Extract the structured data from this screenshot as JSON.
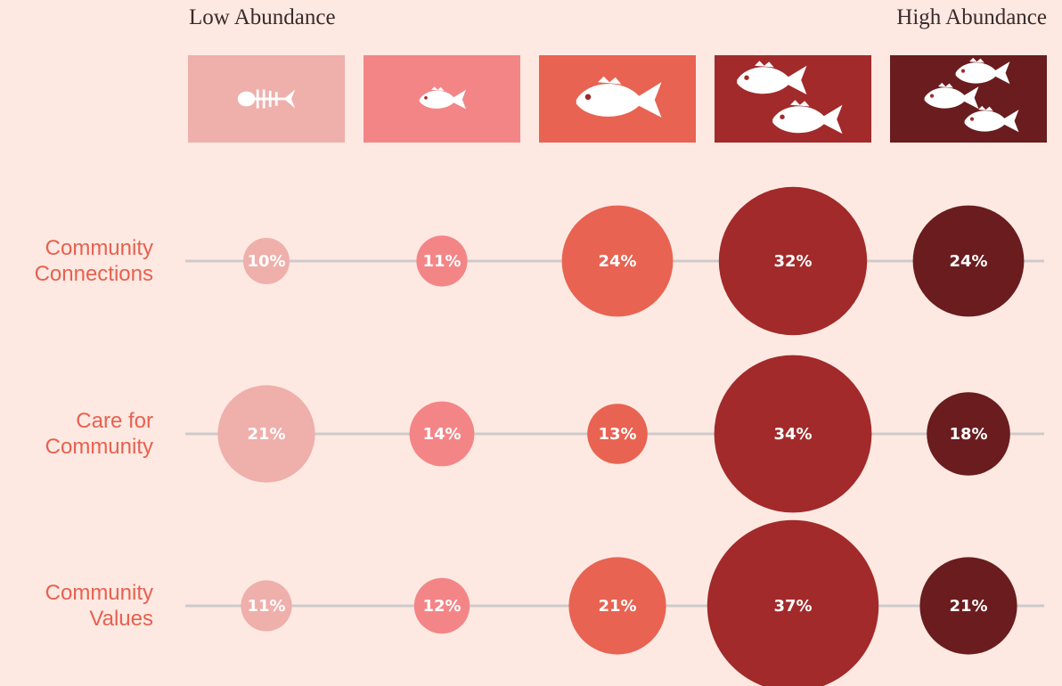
{
  "chart_data": {
    "type": "bubble",
    "label_low": "Low Abundance",
    "label_high": "High Abundance",
    "colors": [
      "#efafab",
      "#f48587",
      "#e86352",
      "#a22a2a",
      "#6a1c1e"
    ],
    "series": [
      {
        "name": "Community Connections",
        "values": [
          10,
          11,
          24,
          32,
          24
        ],
        "value_labels": [
          "10%",
          "11%",
          "24%",
          "32%",
          "24%"
        ]
      },
      {
        "name": "Care for Community",
        "values": [
          21,
          14,
          13,
          34,
          18
        ],
        "value_labels": [
          "21%",
          "14%",
          "13%",
          "34%",
          "18%"
        ]
      },
      {
        "name": "Community Values",
        "values": [
          11,
          12,
          21,
          37,
          21
        ],
        "value_labels": [
          "11%",
          "12%",
          "21%",
          "37%",
          "21%"
        ]
      }
    ]
  }
}
